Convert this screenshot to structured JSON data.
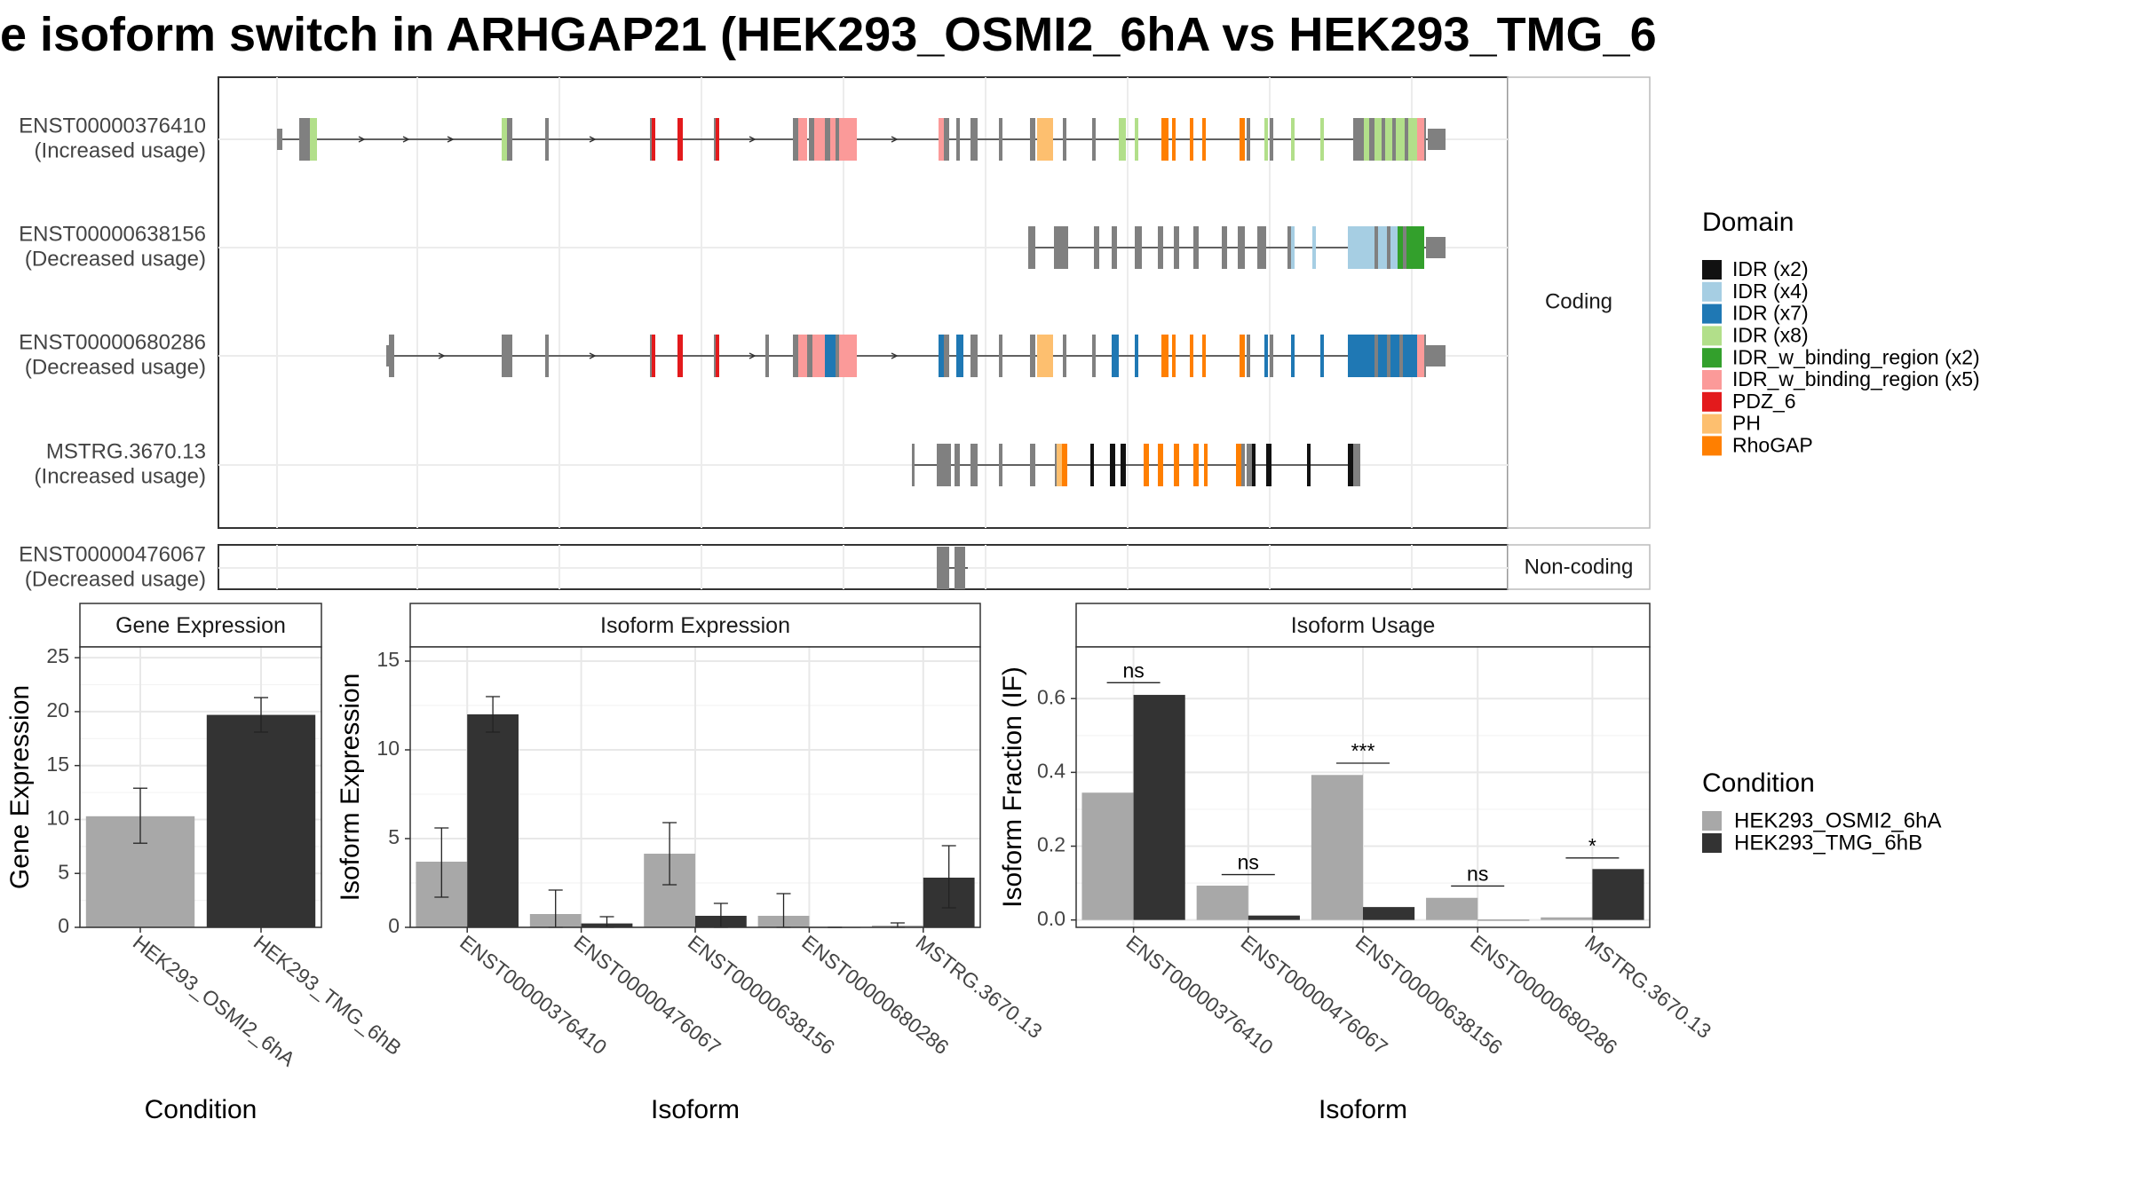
{
  "title": "e isoform switch in ARHGAP21 (HEK293_OSMI2_6hA vs HEK293_TMG_6",
  "colors": {
    "exon": "#808080",
    "IDR (x2)": "#111111",
    "IDR (x4)": "#a6cee3",
    "IDR (x7)": "#1f78b4",
    "IDR (x8)": "#b2df8a",
    "IDR_w_binding_region (x2)": "#33a02c",
    "IDR_w_binding_region (x5)": "#fb9a99",
    "PDZ_6": "#e31a1c",
    "PH": "#fdbf6f",
    "RhoGAP": "#ff7f00",
    "condA": "#a8a8a8",
    "condB": "#333333"
  },
  "structure": {
    "coding_label": "Coding",
    "noncoding_label": "Non-coding",
    "transcripts": [
      {
        "id": "ENST00000376410",
        "usage": "(Increased usage)",
        "group": "coding"
      },
      {
        "id": "ENST00000638156",
        "usage": "(Decreased usage)",
        "group": "coding"
      },
      {
        "id": "ENST00000680286",
        "usage": "(Decreased usage)",
        "group": "coding"
      },
      {
        "id": "MSTRG.3670.13",
        "usage": "(Increased usage)",
        "group": "coding"
      },
      {
        "id": "ENST00000476067",
        "usage": "(Decreased usage)",
        "group": "noncoding"
      }
    ]
  },
  "legend_domain": {
    "title": "Domain",
    "items": [
      "IDR (x2)",
      "IDR (x4)",
      "IDR (x7)",
      "IDR (x8)",
      "IDR_w_binding_region (x2)",
      "IDR_w_binding_region (x5)",
      "PDZ_6",
      "PH",
      "RhoGAP"
    ]
  },
  "legend_condition": {
    "title": "Condition",
    "items": [
      "HEK293_OSMI2_6hA",
      "HEK293_TMG_6hB"
    ]
  },
  "chart_data": [
    {
      "type": "bar",
      "title": "Gene Expression",
      "xlabel": "Condition",
      "ylabel": "Gene Expression",
      "ylim": [
        0,
        26
      ],
      "yticks": [
        "0",
        "5",
        "10",
        "15",
        "20",
        "25"
      ],
      "categories": [
        "HEK293_OSMI2_6hA",
        "HEK293_TMG_6hB"
      ],
      "values": [
        10.3,
        19.7
      ],
      "errors": [
        [
          7.8,
          12.9
        ],
        [
          18.1,
          21.3
        ]
      ]
    },
    {
      "type": "bar",
      "title": "Isoform Expression",
      "xlabel": "Isoform",
      "ylabel": "Isoform Expression",
      "ylim": [
        0,
        15.8
      ],
      "yticks": [
        "0",
        "5",
        "10",
        "15"
      ],
      "categories": [
        "ENST00000376410",
        "ENST00000476067",
        "ENST00000638156",
        "ENST00000680286",
        "MSTRG.3670.13"
      ],
      "series": [
        {
          "name": "HEK293_OSMI2_6hA",
          "values": [
            3.7,
            0.75,
            4.15,
            0.65,
            0.1
          ],
          "errors": [
            [
              1.7,
              5.6
            ],
            [
              0.0,
              2.1
            ],
            [
              2.4,
              5.9
            ],
            [
              0.0,
              1.9
            ],
            [
              0.0,
              0.25
            ]
          ]
        },
        {
          "name": "HEK293_TMG_6hB",
          "values": [
            12.0,
            0.22,
            0.65,
            0.0,
            2.8
          ],
          "errors": [
            [
              11.0,
              13.0
            ],
            [
              0.0,
              0.6
            ],
            [
              0.0,
              1.35
            ],
            [
              0.0,
              0.0
            ],
            [
              1.1,
              4.6
            ]
          ]
        }
      ]
    },
    {
      "type": "bar",
      "title": "Isoform Usage",
      "xlabel": "Isoform",
      "ylabel": "Isoform Fraction (IF)",
      "ylim": [
        -0.02,
        0.74
      ],
      "yticks": [
        "0.0",
        "0.2",
        "0.4",
        "0.6"
      ],
      "categories": [
        "ENST00000376410",
        "ENST00000476067",
        "ENST00000638156",
        "ENST00000680286",
        "MSTRG.3670.13"
      ],
      "series": [
        {
          "name": "HEK293_OSMI2_6hA",
          "values": [
            0.345,
            0.093,
            0.393,
            0.06,
            0.007
          ]
        },
        {
          "name": "HEK293_TMG_6hB",
          "values": [
            0.61,
            0.012,
            0.035,
            0.0,
            0.138
          ]
        }
      ],
      "significance": [
        {
          "label": "ns",
          "y": 0.643
        },
        {
          "label": "ns",
          "y": 0.123
        },
        {
          "label": "***",
          "y": 0.425
        },
        {
          "label": "ns",
          "y": 0.092
        },
        {
          "label": "*",
          "y": 0.168
        }
      ]
    }
  ]
}
